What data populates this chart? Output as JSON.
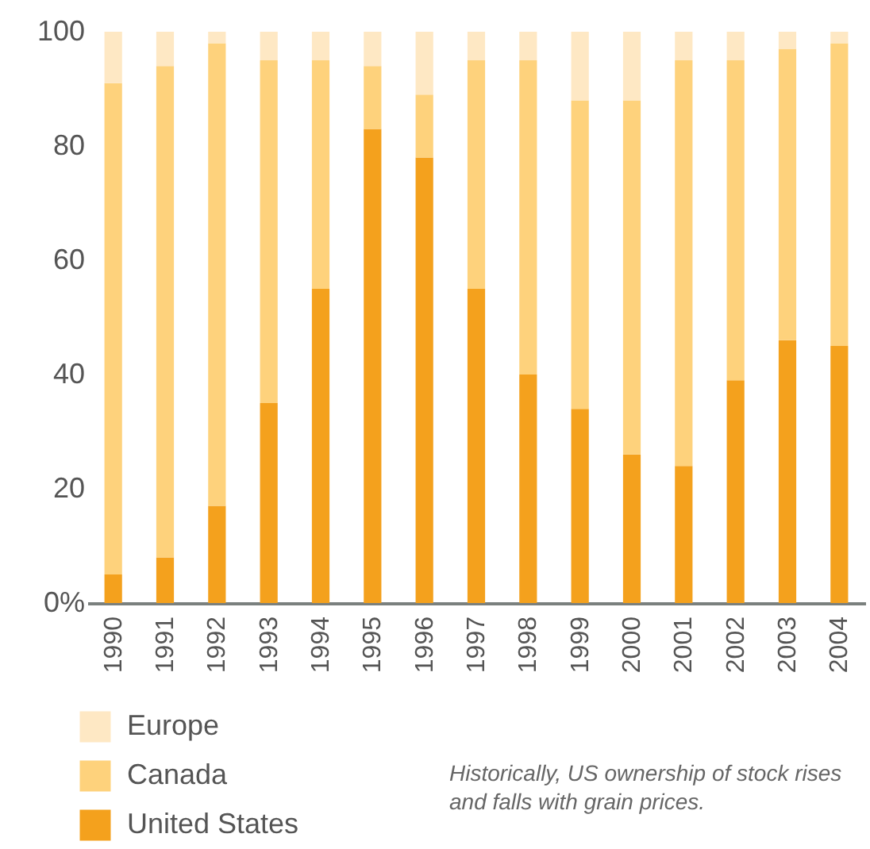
{
  "chart_data": {
    "type": "bar",
    "stacked": true,
    "categories": [
      "1990",
      "1991",
      "1992",
      "1993",
      "1994",
      "1995",
      "1996",
      "1997",
      "1998",
      "1999",
      "2000",
      "2001",
      "2002",
      "2003",
      "2004"
    ],
    "series": [
      {
        "name": "United States",
        "color": "#f4a11d",
        "values": [
          5,
          8,
          17,
          35,
          55,
          83,
          78,
          55,
          40,
          34,
          26,
          24,
          39,
          46,
          45
        ]
      },
      {
        "name": "Canada",
        "color": "#fed27c",
        "values": [
          86,
          86,
          81,
          60,
          40,
          11,
          11,
          40,
          55,
          54,
          62,
          71,
          56,
          51,
          53
        ]
      },
      {
        "name": "Europe",
        "color": "#fee8c4",
        "values": [
          9,
          6,
          2,
          5,
          5,
          6,
          11,
          5,
          5,
          12,
          12,
          5,
          5,
          3,
          2
        ]
      }
    ],
    "ylim": [
      0,
      100
    ],
    "yticks": [
      {
        "value": 0,
        "label": "0%"
      },
      20,
      40,
      60,
      80,
      100
    ],
    "grid": false,
    "legend": "bottom left",
    "annotations": [
      "Historically, US ownership of stock rises and falls with grain prices."
    ]
  }
}
